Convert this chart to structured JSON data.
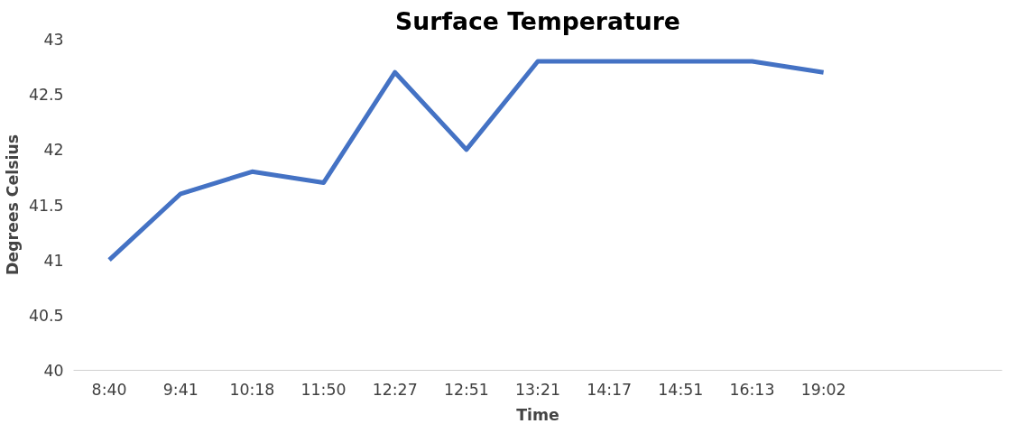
{
  "chart_data": {
    "type": "line",
    "title": "Surface Temperature",
    "xlabel": "Time",
    "ylabel": "Degrees Celsius",
    "categories": [
      "8:40",
      "9:41",
      "10:18",
      "11:50",
      "12:27",
      "12:51",
      "13:21",
      "14:17",
      "14:51",
      "16:13",
      "19:02",
      null,
      null
    ],
    "series": [
      {
        "color": "#4472c4",
        "values": [
          41,
          41.6,
          41.8,
          41.7,
          42.7,
          42.0,
          42.8,
          42.8,
          42.8,
          42.8,
          42.7,
          null,
          null
        ]
      }
    ],
    "ylim": [
      40,
      43
    ],
    "yticks": [
      40,
      40.5,
      41,
      41.5,
      42,
      42.5,
      43
    ],
    "line_style": "solid"
  }
}
